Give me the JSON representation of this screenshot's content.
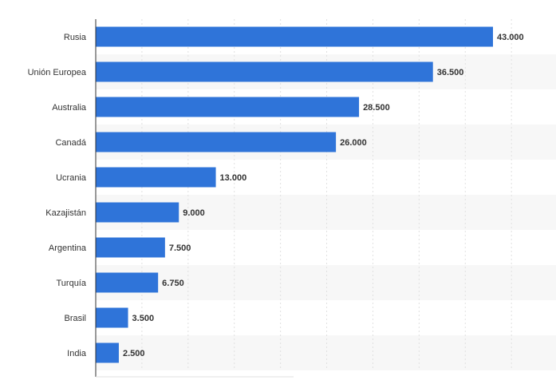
{
  "chart_data": {
    "type": "bar",
    "orientation": "horizontal",
    "categories": [
      "Rusia",
      "Unión Europea",
      "Australia",
      "Canadá",
      "Ucrania",
      "Kazajistán",
      "Argentina",
      "Turquía",
      "Brasil",
      "India"
    ],
    "values": [
      43000,
      36500,
      28500,
      26000,
      13000,
      9000,
      7500,
      6750,
      3500,
      2500
    ],
    "data_labels": [
      "43.000",
      "36.500",
      "28.500",
      "26.000",
      "13.000",
      "9.000",
      "7.500",
      "6.750",
      "3.500",
      "2.500"
    ],
    "xlim": [
      0,
      50000
    ],
    "grid": true,
    "colors": {
      "bar": "#2f74d9",
      "band": "#f7f7f7",
      "grid": "#e0e0e0",
      "axis": "#333333",
      "label": "#333333"
    }
  }
}
